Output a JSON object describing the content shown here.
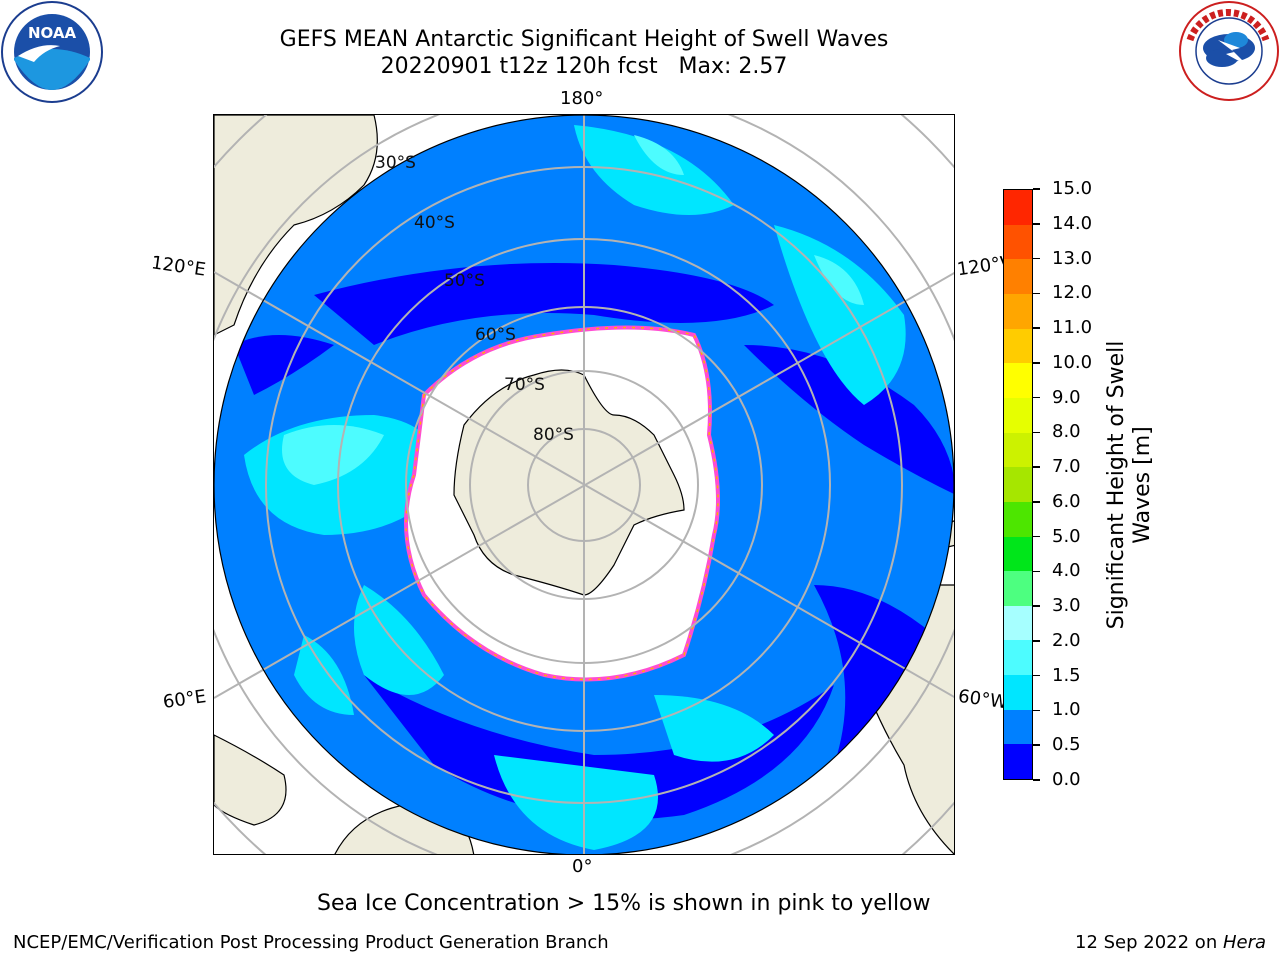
{
  "title": {
    "line1": "GEFS MEAN Antarctic Significant Height of Swell Waves",
    "line2": "20220901 t12z 120h fcst   Max: 2.57"
  },
  "logos": {
    "left": "NOAA",
    "right": "NATIONAL WEATHER SERVICE"
  },
  "map": {
    "projection": "south polar stereographic",
    "longitude_labels": {
      "top": "180°",
      "bottom": "0°",
      "upper_left": "120°E",
      "upper_right": "120°W",
      "lower_left": "60°E",
      "lower_right": "60°W"
    },
    "latitude_labels": [
      "30°S",
      "40°S",
      "50°S",
      "60°S",
      "70°S",
      "80°S"
    ],
    "colors": {
      "land": "#eeecdc",
      "ice_edge": "#ff4dd2",
      "ice_yellow": "#ffb000",
      "grid": "#b3b3b3"
    }
  },
  "colorbar": {
    "label_line1": "Significant Height of Swell",
    "label_line2": "Waves [m]",
    "ticks": [
      "0.0",
      "0.5",
      "1.0",
      "1.5",
      "2.0",
      "3.0",
      "4.0",
      "5.0",
      "6.0",
      "7.0",
      "8.0",
      "9.0",
      "10.0",
      "11.0",
      "12.0",
      "13.0",
      "14.0",
      "15.0"
    ],
    "colors": [
      "#0000ff",
      "#0080ff",
      "#00e6ff",
      "#4dfcff",
      "#a6ffff",
      "#4dff80",
      "#00e61a",
      "#4de600",
      "#a6e600",
      "#ccf200",
      "#e6ff00",
      "#ffff00",
      "#ffcc00",
      "#ffa600",
      "#ff8000",
      "#ff5200",
      "#ff2600"
    ]
  },
  "subtitle": "Sea Ice Concentration > 15% is shown in pink to yellow",
  "footer": {
    "left": "NCEP/EMC/Verification Post Processing Product Generation Branch",
    "right_prefix": "12 Sep 2022 on ",
    "right_host": "Hera"
  }
}
